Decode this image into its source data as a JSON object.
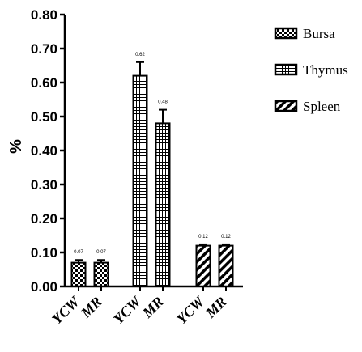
{
  "chart_data": {
    "type": "bar",
    "title": "",
    "xlabel": "",
    "ylabel": "%",
    "ylim": [
      0,
      0.8
    ],
    "yticks": [
      "0.00",
      "0.10",
      "0.20",
      "0.30",
      "0.40",
      "0.50",
      "0.60",
      "0.70",
      "0.80"
    ],
    "grid": false,
    "legend_position": "top-right",
    "categories": [
      "YCW",
      "MR",
      "YCW",
      "MR",
      "YCW",
      "MR"
    ],
    "series": [
      {
        "name": "Bursa",
        "pattern": "checkerboard",
        "values": [
          0.07,
          0.07,
          null,
          null,
          null,
          null
        ],
        "errors": [
          0.008,
          0.008,
          null,
          null,
          null,
          null
        ],
        "labels": [
          "0.07",
          "0.07",
          "",
          "",
          "",
          ""
        ]
      },
      {
        "name": "Thymus",
        "pattern": "grid",
        "values": [
          null,
          null,
          0.62,
          0.48,
          null,
          null
        ],
        "errors": [
          null,
          null,
          0.04,
          0.04,
          null,
          null
        ],
        "labels": [
          "",
          "",
          "0.62",
          "0.48",
          "",
          ""
        ]
      },
      {
        "name": "Spleen",
        "pattern": "diagonal-stripes",
        "values": [
          null,
          null,
          null,
          null,
          0.12,
          0.12
        ],
        "errors": [
          null,
          null,
          null,
          null,
          0.004,
          0.004
        ],
        "labels": [
          "",
          "",
          "",
          "",
          "0.12",
          "0.12"
        ]
      }
    ]
  }
}
